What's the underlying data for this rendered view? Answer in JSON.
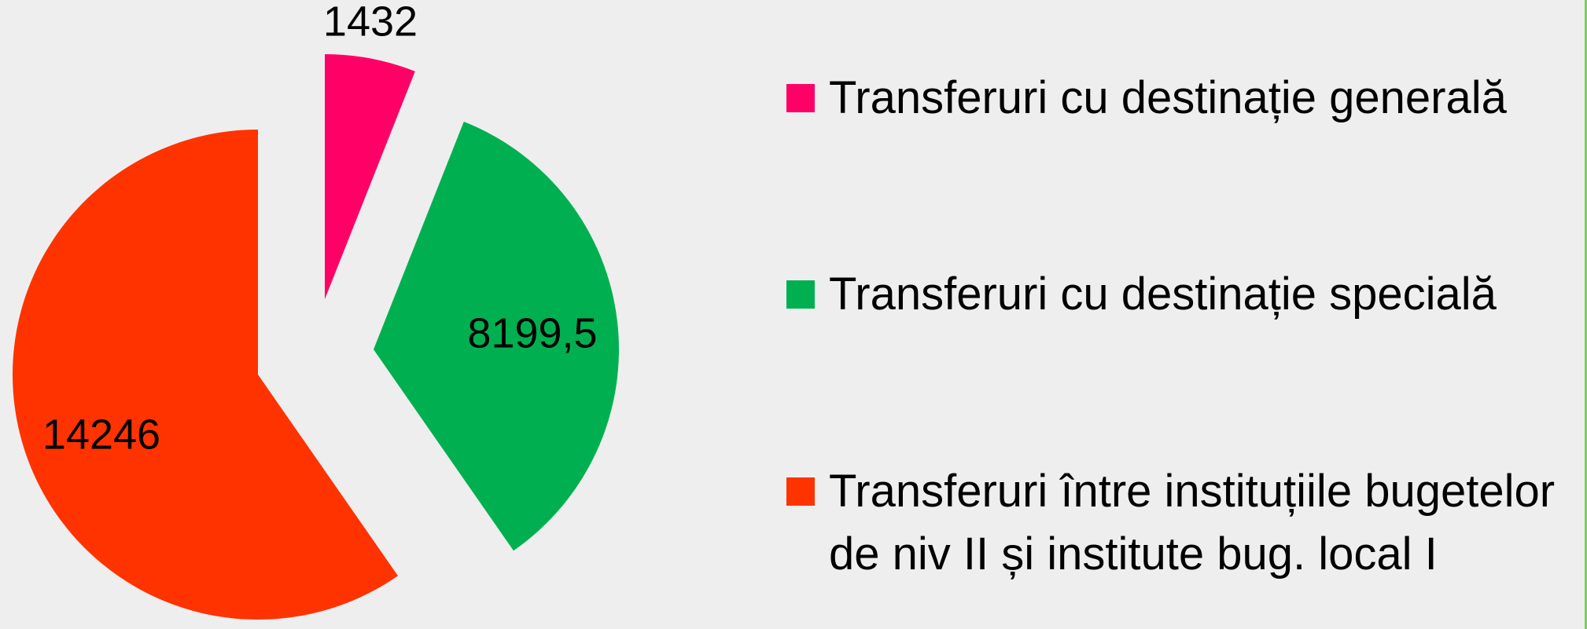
{
  "chart_data": {
    "type": "pie",
    "categories": [
      "Transferuri cu destinație generală",
      "Transferuri cu destinație specială",
      "Transferuri între instituțiile bugetelor de niv II și institute bug. local I"
    ],
    "values": [
      1432,
      8199.5,
      14246
    ],
    "value_labels": [
      "1432",
      "8199,5",
      "14246"
    ],
    "colors": [
      "#ff0066",
      "#00b050",
      "#ff3300"
    ]
  }
}
